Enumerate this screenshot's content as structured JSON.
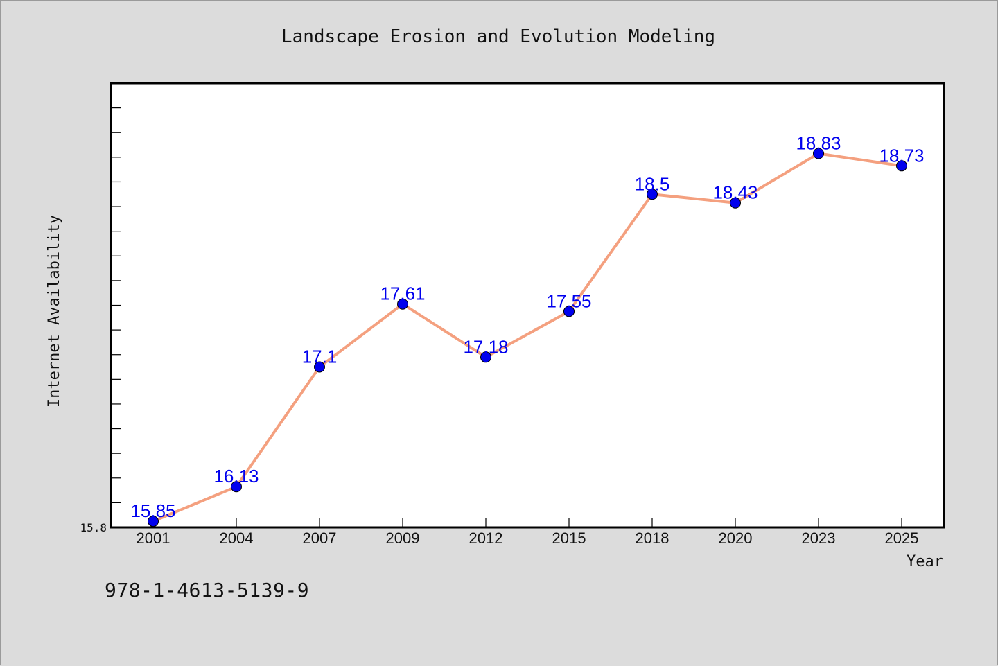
{
  "colors": {
    "background": "#dcdcdc",
    "plot_background": "#ffffff",
    "line": "#f4a07f",
    "marker": "#0000ee",
    "data_label": "#0000ee",
    "text": "#111111"
  },
  "footer_code": "978-1-4613-5139-9",
  "chart_data": {
    "type": "line",
    "title": "Landscape Erosion and Evolution Modeling",
    "xlabel": "Year",
    "ylabel": "Internet Availability",
    "categories": [
      "2001",
      "2004",
      "2007",
      "2009",
      "2012",
      "2015",
      "2018",
      "2020",
      "2023",
      "2025"
    ],
    "series": [
      {
        "values": [
          15.85,
          16.13,
          17.1,
          17.61,
          17.18,
          17.55,
          18.5,
          18.43,
          18.83,
          18.73
        ],
        "labels": [
          "15.85",
          "16.13",
          "17.1",
          "17.61",
          "17.18",
          "17.55",
          "18.5",
          "18.43",
          "18.83",
          "18.73"
        ]
      }
    ],
    "ylim": [
      15.8,
      19.4
    ],
    "y_tick_labels": [
      "15.8"
    ],
    "grid": false,
    "legend": "none"
  }
}
